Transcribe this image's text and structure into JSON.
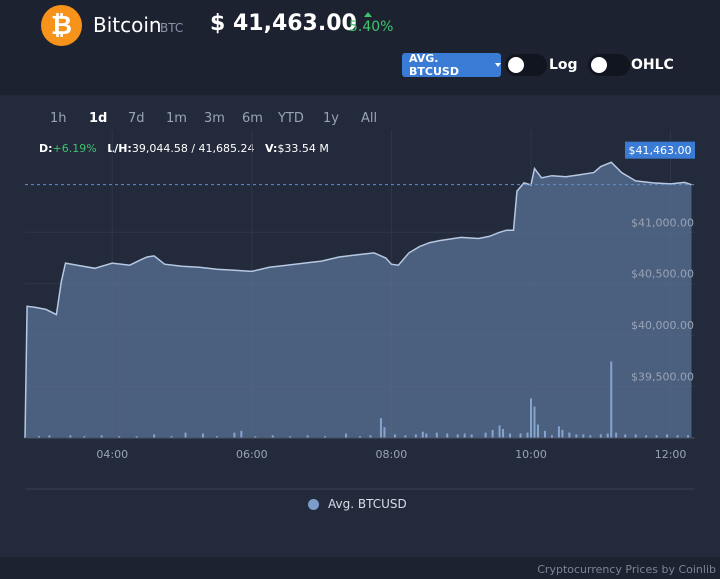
{
  "header": {
    "coin_logo_glyph": "₿",
    "coin_name": "Bitcoin",
    "coin_symbol": "BTC",
    "price": "$ 41,463.00",
    "change": "5.40%",
    "change_color": "#3ec46d",
    "logo_color": "#f7931a"
  },
  "controls": {
    "series_button": "AVG. BTCUSD",
    "log_label": "Log",
    "ohlc_label": "OHLC",
    "log_on": false,
    "ohlc_on": false
  },
  "ranges": [
    "1h",
    "1d",
    "7d",
    "1m",
    "3m",
    "6m",
    "YTD",
    "1y",
    "All"
  ],
  "active_range": "1d",
  "stats": {
    "d_label": "D:",
    "d_value": "+6.19%",
    "lh_label": "L/H:",
    "lh_value": "39,044.58 / 41,685.24",
    "v_label": "V:",
    "v_value": "$33.54 M"
  },
  "legend_label": "Avg. BTCUSD",
  "footer": "Cryptocurrency Prices by Coinlib",
  "chart_data": {
    "type": "area",
    "series_name": "Avg. BTCUSD",
    "current_price_label": "$41,463.00",
    "current_price": 41463,
    "x_ticks": [
      "04:00",
      "06:00",
      "08:00",
      "10:00",
      "12:00"
    ],
    "x_tick_hours": [
      4,
      6,
      8,
      10,
      12
    ],
    "y_ticks": [
      39500,
      40000,
      40500,
      41000
    ],
    "y_tick_labels": [
      "$39,500.00",
      "$40,000.00",
      "$40,500.00",
      "$41,000.00"
    ],
    "ylim": [
      39000,
      41800
    ],
    "xlim": [
      2.75,
      12.35
    ],
    "grid": true,
    "colors": {
      "line": "#b6c8e2",
      "fill": "#5a7196",
      "volume": "#8fb0dc",
      "price_tag": "#3a7bd5"
    },
    "price": [
      [
        2.75,
        39000
      ],
      [
        2.78,
        40280
      ],
      [
        2.9,
        40270
      ],
      [
        3.05,
        40250
      ],
      [
        3.2,
        40200
      ],
      [
        3.27,
        40520
      ],
      [
        3.33,
        40700
      ],
      [
        3.5,
        40680
      ],
      [
        3.75,
        40650
      ],
      [
        4.0,
        40700
      ],
      [
        4.25,
        40680
      ],
      [
        4.4,
        40730
      ],
      [
        4.5,
        40760
      ],
      [
        4.6,
        40770
      ],
      [
        4.75,
        40690
      ],
      [
        5.0,
        40670
      ],
      [
        5.25,
        40660
      ],
      [
        5.5,
        40640
      ],
      [
        5.75,
        40630
      ],
      [
        6.0,
        40620
      ],
      [
        6.25,
        40660
      ],
      [
        6.5,
        40680
      ],
      [
        6.75,
        40700
      ],
      [
        7.0,
        40720
      ],
      [
        7.25,
        40760
      ],
      [
        7.5,
        40780
      ],
      [
        7.75,
        40800
      ],
      [
        7.92,
        40750
      ],
      [
        8.0,
        40690
      ],
      [
        8.1,
        40680
      ],
      [
        8.25,
        40800
      ],
      [
        8.4,
        40860
      ],
      [
        8.55,
        40900
      ],
      [
        8.7,
        40920
      ],
      [
        9.0,
        40950
      ],
      [
        9.25,
        40940
      ],
      [
        9.4,
        40960
      ],
      [
        9.55,
        41000
      ],
      [
        9.65,
        41020
      ],
      [
        9.75,
        41020
      ],
      [
        9.8,
        41400
      ],
      [
        9.9,
        41480
      ],
      [
        10.0,
        41460
      ],
      [
        10.05,
        41620
      ],
      [
        10.15,
        41530
      ],
      [
        10.3,
        41550
      ],
      [
        10.5,
        41540
      ],
      [
        10.7,
        41560
      ],
      [
        10.9,
        41580
      ],
      [
        11.0,
        41640
      ],
      [
        11.15,
        41680
      ],
      [
        11.3,
        41580
      ],
      [
        11.5,
        41500
      ],
      [
        11.75,
        41480
      ],
      [
        12.0,
        41470
      ],
      [
        12.2,
        41485
      ],
      [
        12.3,
        41463
      ]
    ],
    "volume_max": 1,
    "volume": [
      [
        2.95,
        0.02
      ],
      [
        3.1,
        0.03
      ],
      [
        3.4,
        0.03
      ],
      [
        3.6,
        0.02
      ],
      [
        3.85,
        0.03
      ],
      [
        4.1,
        0.02
      ],
      [
        4.35,
        0.02
      ],
      [
        4.6,
        0.04
      ],
      [
        4.85,
        0.02
      ],
      [
        5.05,
        0.06
      ],
      [
        5.3,
        0.05
      ],
      [
        5.5,
        0.02
      ],
      [
        5.75,
        0.06
      ],
      [
        5.85,
        0.08
      ],
      [
        6.05,
        0.02
      ],
      [
        6.3,
        0.03
      ],
      [
        6.55,
        0.02
      ],
      [
        6.8,
        0.03
      ],
      [
        7.05,
        0.02
      ],
      [
        7.35,
        0.05
      ],
      [
        7.55,
        0.02
      ],
      [
        7.7,
        0.03
      ],
      [
        7.85,
        0.22
      ],
      [
        7.9,
        0.12
      ],
      [
        8.05,
        0.04
      ],
      [
        8.2,
        0.03
      ],
      [
        8.35,
        0.04
      ],
      [
        8.45,
        0.07
      ],
      [
        8.5,
        0.05
      ],
      [
        8.65,
        0.06
      ],
      [
        8.8,
        0.05
      ],
      [
        8.95,
        0.04
      ],
      [
        9.05,
        0.05
      ],
      [
        9.15,
        0.04
      ],
      [
        9.35,
        0.06
      ],
      [
        9.45,
        0.09
      ],
      [
        9.55,
        0.14
      ],
      [
        9.6,
        0.1
      ],
      [
        9.7,
        0.05
      ],
      [
        9.85,
        0.05
      ],
      [
        9.95,
        0.06
      ],
      [
        10.0,
        0.44
      ],
      [
        10.05,
        0.35
      ],
      [
        10.1,
        0.15
      ],
      [
        10.2,
        0.08
      ],
      [
        10.3,
        0.03
      ],
      [
        10.4,
        0.13
      ],
      [
        10.45,
        0.09
      ],
      [
        10.55,
        0.06
      ],
      [
        10.65,
        0.04
      ],
      [
        10.75,
        0.04
      ],
      [
        10.85,
        0.03
      ],
      [
        11.0,
        0.04
      ],
      [
        11.1,
        0.05
      ],
      [
        11.15,
        0.85
      ],
      [
        11.22,
        0.06
      ],
      [
        11.35,
        0.04
      ],
      [
        11.5,
        0.04
      ],
      [
        11.65,
        0.03
      ],
      [
        11.8,
        0.03
      ],
      [
        11.95,
        0.04
      ],
      [
        12.1,
        0.03
      ],
      [
        12.25,
        0.03
      ]
    ]
  }
}
